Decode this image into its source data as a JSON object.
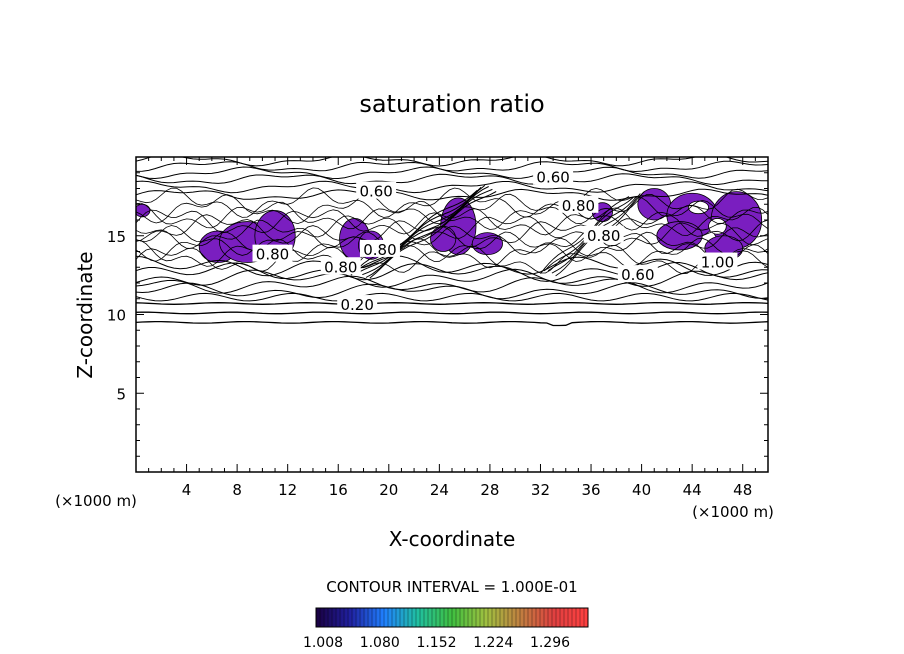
{
  "chart_data": {
    "type": "contour",
    "title": "saturation ratio",
    "xlabel": "X-coordinate",
    "ylabel": "Z-coordinate",
    "x_unit": "(×1000 m)",
    "xlim": [
      0,
      50
    ],
    "ylim": [
      0,
      20
    ],
    "x_ticks": [
      4,
      8,
      12,
      16,
      20,
      24,
      28,
      32,
      36,
      40,
      44,
      48
    ],
    "y_ticks": [
      5,
      10,
      15
    ],
    "contour_interval_text": "CONTOUR INTERVAL = 1.000E-01",
    "contour_labels": [
      {
        "text": "0.60",
        "x": 19.0,
        "z": 17.8
      },
      {
        "text": "0.60",
        "x": 33.0,
        "z": 18.7
      },
      {
        "text": "0.80",
        "x": 35.0,
        "z": 16.9
      },
      {
        "text": "0.80",
        "x": 37.0,
        "z": 15.0
      },
      {
        "text": "0.60",
        "x": 39.7,
        "z": 12.5
      },
      {
        "text": "1.00",
        "x": 46.0,
        "z": 13.3
      },
      {
        "text": "0.20",
        "x": 17.5,
        "z": 10.6
      },
      {
        "text": "0.80",
        "x": 10.8,
        "z": 13.8
      },
      {
        "text": "0.80",
        "x": 19.3,
        "z": 14.1
      },
      {
        "text": "0.80",
        "x": 16.2,
        "z": 13.0
      }
    ],
    "supersaturated_regions_x_ranges": [
      [
        0,
        1
      ],
      [
        5,
        12.5
      ],
      [
        16,
        20
      ],
      [
        23.5,
        29
      ],
      [
        36,
        38
      ],
      [
        39.5,
        49.5
      ]
    ],
    "colorbar": {
      "tick_labels": [
        "1.008",
        "1.080",
        "1.152",
        "1.224",
        "1.296"
      ],
      "colors": [
        "#1a0040",
        "#2020a0",
        "#2080ff",
        "#20c0a0",
        "#40c040",
        "#a0c040",
        "#c08040",
        "#e04040",
        "#ff4040"
      ]
    },
    "fill_color": "#7a1ec0"
  }
}
